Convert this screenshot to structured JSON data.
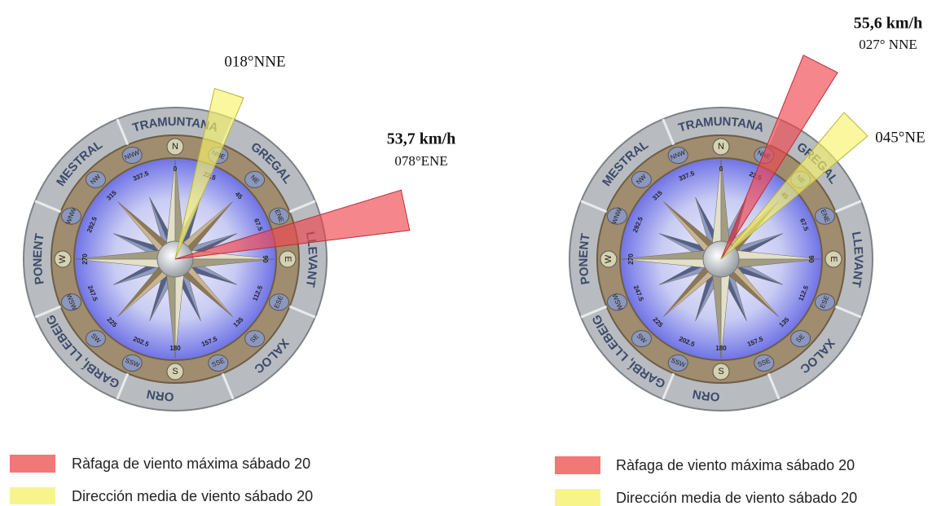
{
  "compass": {
    "winds": [
      "TRAMUNTANA",
      "GREGAL",
      "LLEVANT",
      "XALOC",
      "MIGJORN",
      "GARBÍ, LLEBEIG",
      "PONENT",
      "MESTRAL"
    ],
    "points": [
      "N",
      "NNE",
      "NE",
      "ENE",
      "E",
      "ESE",
      "SE",
      "SSE",
      "S",
      "SSW",
      "SW",
      "WSW",
      "W",
      "WNW",
      "NW",
      "NNW"
    ],
    "degrees": [
      "0",
      "22.5",
      "45",
      "67.5",
      "90",
      "112.5",
      "135",
      "157.5",
      "180",
      "202.5",
      "225",
      "247.5",
      "270",
      "292.5",
      "315",
      "337.5"
    ]
  },
  "roses": [
    {
      "gust": {
        "speed_label": "53,7 km/h",
        "direction_label": "078°ENE",
        "direction": 78
      },
      "mean": {
        "direction_label": "018°NNE",
        "direction": 18
      },
      "legend_gust": "Ràfaga de viento máxima sábado 20",
      "legend_mean": "Dirección media de viento sábado 20"
    },
    {
      "gust": {
        "speed_label": "55,6 km/h",
        "direction_label": "027° NNE",
        "direction": 27
      },
      "mean": {
        "direction_label": "045°NE",
        "direction": 45
      },
      "legend_gust": "Ràfaga de viento máxima sábado 20",
      "legend_mean": "Dirección media de viento sábado 20"
    }
  ]
}
